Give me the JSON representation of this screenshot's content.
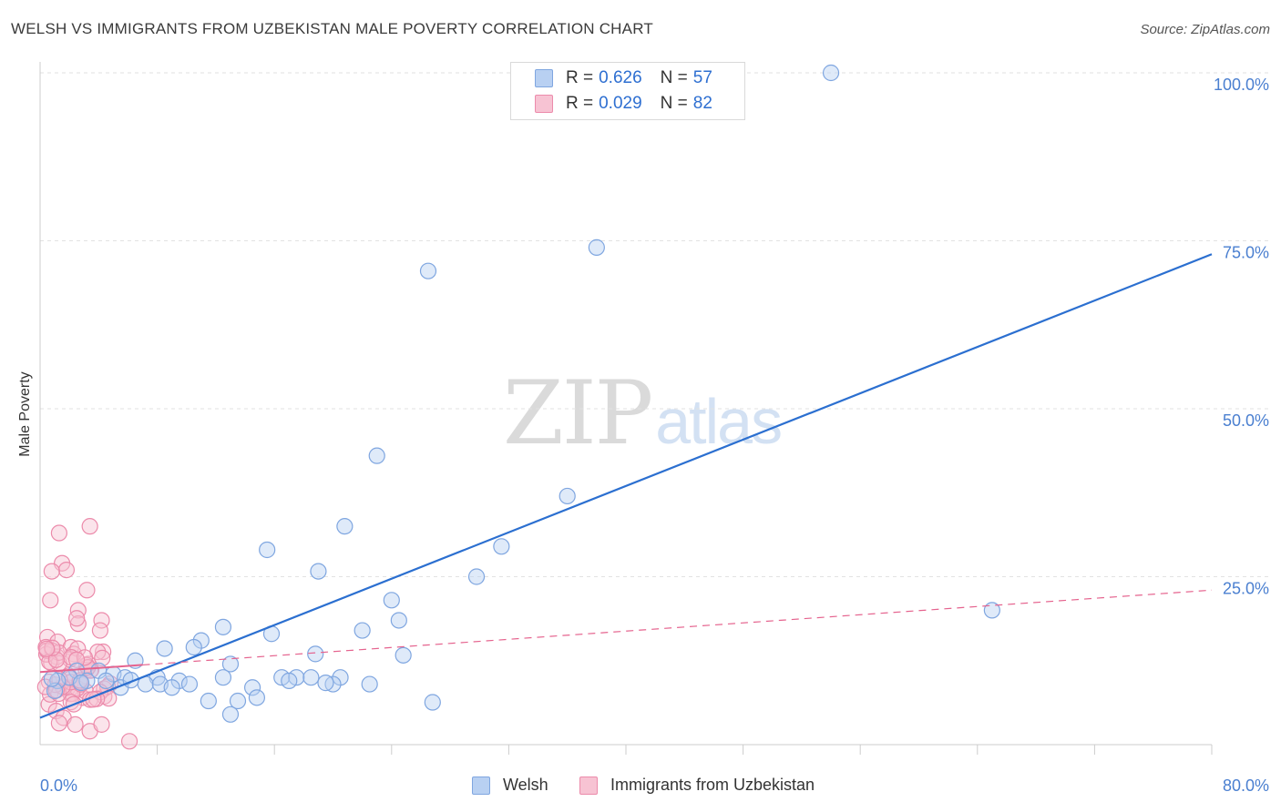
{
  "title": "WELSH VS IMMIGRANTS FROM UZBEKISTAN MALE POVERTY CORRELATION CHART",
  "source": "Source: ZipAtlas.com",
  "watermark": {
    "zip": "ZIP",
    "atlas": "atlas"
  },
  "legend": {
    "welsh": {
      "r_label": "R = ",
      "r_value": "0.626",
      "n_label": "N = ",
      "n_value": "57"
    },
    "uzbek": {
      "r_label": "R = ",
      "r_value": "0.029",
      "n_label": "N = ",
      "n_value": "82"
    }
  },
  "bottom_legend": {
    "welsh": "Welsh",
    "uzbek": "Immigrants from Uzbekistan"
  },
  "colors": {
    "welsh_fill": "#b8d0f2",
    "welsh_stroke": "#7fa6e0",
    "welsh_line": "#2b6fd0",
    "uzbek_fill": "#f7c3d3",
    "uzbek_stroke": "#ec8bab",
    "uzbek_line": "#e5638e",
    "grid": "#e2e2e2",
    "axis": "#cccccc",
    "tick_text": "#4a7fd0"
  },
  "chart_data": {
    "type": "scatter",
    "title": "WELSH VS IMMIGRANTS FROM UZBEKISTAN MALE POVERTY CORRELATION CHART",
    "xlabel": "",
    "ylabel": "Male Poverty",
    "xlim": [
      0,
      80
    ],
    "ylim": [
      0,
      100
    ],
    "x_tick_labels": [
      "0.0%",
      "80.0%"
    ],
    "y_ticks": [
      25,
      50,
      75,
      100
    ],
    "y_tick_labels": [
      "25.0%",
      "50.0%",
      "75.0%",
      "100.0%"
    ],
    "grid": true,
    "series": [
      {
        "name": "Welsh",
        "r": 0.626,
        "n": 57,
        "trend": {
          "x": [
            0,
            80
          ],
          "y": [
            4.0,
            73.0
          ],
          "style": "solid"
        },
        "points": [
          [
            54.0,
            100.0
          ],
          [
            38.0,
            74.0
          ],
          [
            26.5,
            70.5
          ],
          [
            23.0,
            43.0
          ],
          [
            36.0,
            37.0
          ],
          [
            20.8,
            32.5
          ],
          [
            31.5,
            29.5
          ],
          [
            15.5,
            29.0
          ],
          [
            19.0,
            25.8
          ],
          [
            29.8,
            25.0
          ],
          [
            65.0,
            20.0
          ],
          [
            24.0,
            21.5
          ],
          [
            24.5,
            18.5
          ],
          [
            12.5,
            17.5
          ],
          [
            22.0,
            17.0
          ],
          [
            15.8,
            16.5
          ],
          [
            11.0,
            15.5
          ],
          [
            10.5,
            14.5
          ],
          [
            8.5,
            14.3
          ],
          [
            18.8,
            13.5
          ],
          [
            24.8,
            13.3
          ],
          [
            6.5,
            12.5
          ],
          [
            13.0,
            12.0
          ],
          [
            2.5,
            11.0
          ],
          [
            4.0,
            11.0
          ],
          [
            5.0,
            10.5
          ],
          [
            5.8,
            10.0
          ],
          [
            8.0,
            10.0
          ],
          [
            2.0,
            10.0
          ],
          [
            1.2,
            9.5
          ],
          [
            3.2,
            9.5
          ],
          [
            4.5,
            9.5
          ],
          [
            7.2,
            9.0
          ],
          [
            8.2,
            9.0
          ],
          [
            9.5,
            9.5
          ],
          [
            10.2,
            9.0
          ],
          [
            12.5,
            10.0
          ],
          [
            16.5,
            10.0
          ],
          [
            17.5,
            10.0
          ],
          [
            18.5,
            10.0
          ],
          [
            20.5,
            10.0
          ],
          [
            17.0,
            9.5
          ],
          [
            20.0,
            9.0
          ],
          [
            22.5,
            9.0
          ],
          [
            14.5,
            8.5
          ],
          [
            5.5,
            8.5
          ],
          [
            9.0,
            8.5
          ],
          [
            11.5,
            6.5
          ],
          [
            13.5,
            6.5
          ],
          [
            14.8,
            7.0
          ],
          [
            13.0,
            4.5
          ],
          [
            26.8,
            6.3
          ],
          [
            1.0,
            8.0
          ],
          [
            2.8,
            9.2
          ],
          [
            6.2,
            9.6
          ],
          [
            19.5,
            9.2
          ],
          [
            0.8,
            9.8
          ]
        ]
      },
      {
        "name": "Immigrants from Uzbekistan",
        "r": 0.029,
        "n": 82,
        "trend": {
          "x": [
            0,
            80
          ],
          "y": [
            10.8,
            23.0
          ],
          "style": "dashed",
          "solid_until_x": 7
        }
      }
    ]
  }
}
